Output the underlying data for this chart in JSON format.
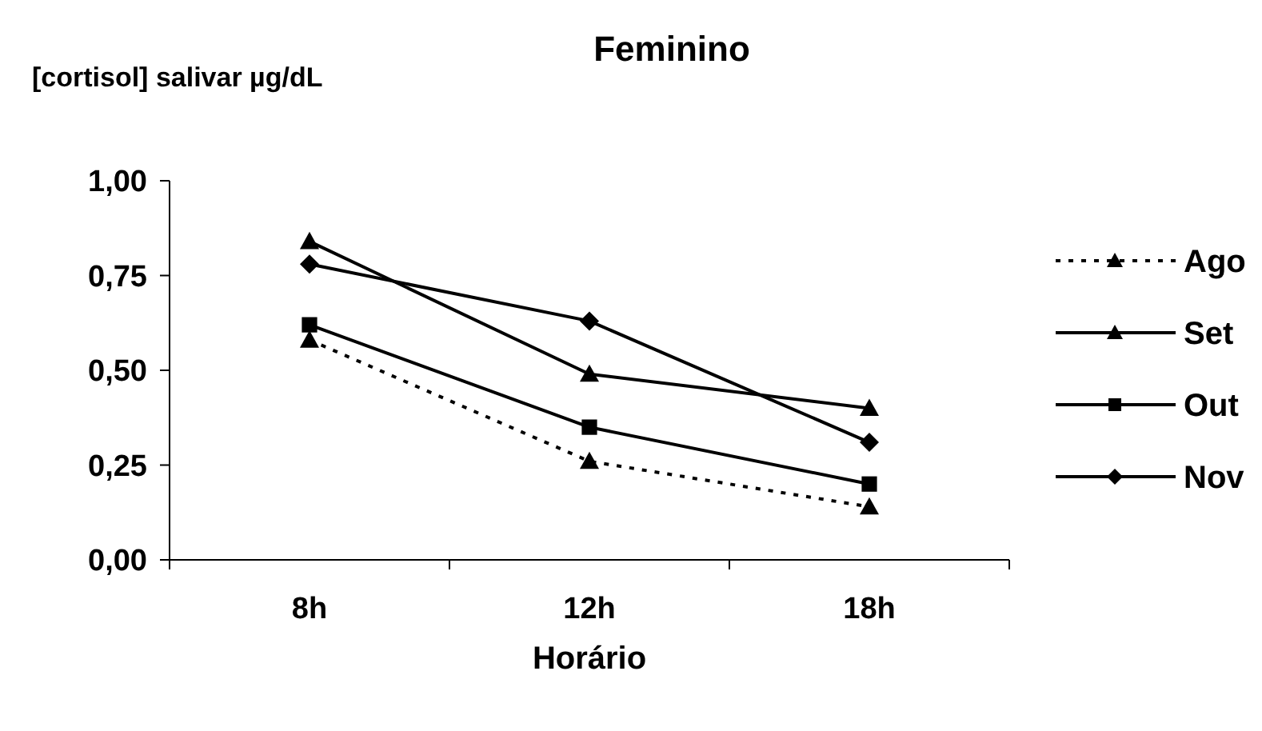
{
  "chart_data": {
    "type": "line",
    "title": "Feminino",
    "ylabel": "[cortisol] salivar µg/dL",
    "xlabel": "Horário",
    "categories": [
      "8h",
      "12h",
      "18h"
    ],
    "series": [
      {
        "name": "Ago",
        "color": "#000000",
        "values": [
          0.58,
          0.26,
          0.14
        ],
        "marker": "triangle",
        "line_style": "dotted"
      },
      {
        "name": "Set",
        "color": "#000000",
        "values": [
          0.84,
          0.49,
          0.4
        ],
        "marker": "triangle",
        "line_style": "solid"
      },
      {
        "name": "Out",
        "color": "#000000",
        "values": [
          0.62,
          0.35,
          0.2
        ],
        "marker": "square",
        "line_style": "solid"
      },
      {
        "name": "Nov",
        "color": "#000000",
        "values": [
          0.78,
          0.63,
          0.31
        ],
        "marker": "diamond",
        "line_style": "solid"
      }
    ],
    "ylim": [
      0,
      1
    ],
    "yticks": [
      {
        "value": 0,
        "label": "0,00"
      },
      {
        "value": 0.25,
        "label": "0,25"
      },
      {
        "value": 0.5,
        "label": "0,50"
      },
      {
        "value": 0.75,
        "label": "0,75"
      },
      {
        "value": 1,
        "label": "1,00"
      }
    ],
    "grid": false,
    "legend": "right"
  }
}
